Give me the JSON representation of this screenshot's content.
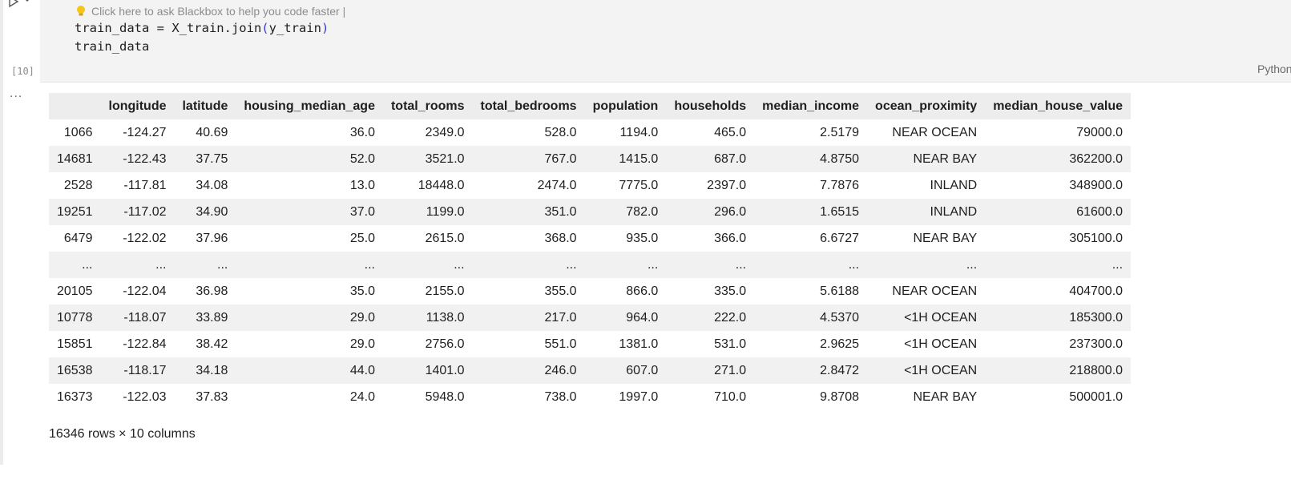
{
  "cell": {
    "hint_text": "Click here to ask Blackbox to help you code faster |",
    "code_line1_a": "train_data = X_train.join",
    "code_line1_b": "(",
    "code_line1_c": "y_train",
    "code_line1_d": ")",
    "code_line2": "train_data",
    "exec_count": "[10]",
    "language": "Python"
  },
  "output": {
    "ellipsis": "...",
    "columns": [
      "",
      "longitude",
      "latitude",
      "housing_median_age",
      "total_rooms",
      "total_bedrooms",
      "population",
      "households",
      "median_income",
      "ocean_proximity",
      "median_house_value"
    ],
    "rows": [
      [
        "1066",
        "-124.27",
        "40.69",
        "36.0",
        "2349.0",
        "528.0",
        "1194.0",
        "465.0",
        "2.5179",
        "NEAR OCEAN",
        "79000.0"
      ],
      [
        "14681",
        "-122.43",
        "37.75",
        "52.0",
        "3521.0",
        "767.0",
        "1415.0",
        "687.0",
        "4.8750",
        "NEAR BAY",
        "362200.0"
      ],
      [
        "2528",
        "-117.81",
        "34.08",
        "13.0",
        "18448.0",
        "2474.0",
        "7775.0",
        "2397.0",
        "7.7876",
        "INLAND",
        "348900.0"
      ],
      [
        "19251",
        "-117.02",
        "34.90",
        "37.0",
        "1199.0",
        "351.0",
        "782.0",
        "296.0",
        "1.6515",
        "INLAND",
        "61600.0"
      ],
      [
        "6479",
        "-122.02",
        "37.96",
        "25.0",
        "2615.0",
        "368.0",
        "935.0",
        "366.0",
        "6.6727",
        "NEAR BAY",
        "305100.0"
      ],
      [
        "...",
        "...",
        "...",
        "...",
        "...",
        "...",
        "...",
        "...",
        "...",
        "...",
        "..."
      ],
      [
        "20105",
        "-122.04",
        "36.98",
        "35.0",
        "2155.0",
        "355.0",
        "866.0",
        "335.0",
        "5.6188",
        "NEAR OCEAN",
        "404700.0"
      ],
      [
        "10778",
        "-118.07",
        "33.89",
        "29.0",
        "1138.0",
        "217.0",
        "964.0",
        "222.0",
        "4.5370",
        "<1H OCEAN",
        "185300.0"
      ],
      [
        "15851",
        "-122.84",
        "38.42",
        "29.0",
        "2756.0",
        "551.0",
        "1381.0",
        "531.0",
        "2.9625",
        "<1H OCEAN",
        "237300.0"
      ],
      [
        "16538",
        "-118.17",
        "34.18",
        "44.0",
        "1401.0",
        "246.0",
        "607.0",
        "271.0",
        "2.8472",
        "<1H OCEAN",
        "218800.0"
      ],
      [
        "16373",
        "-122.03",
        "37.83",
        "24.0",
        "5948.0",
        "738.0",
        "1997.0",
        "710.0",
        "9.8708",
        "NEAR BAY",
        "500001.0"
      ]
    ],
    "shape_text": "16346 rows × 10 columns"
  },
  "colors": {
    "cell_bg": "#f3f3f3",
    "header_bg": "#ededed",
    "stripe_bg": "#f1f1f1"
  }
}
